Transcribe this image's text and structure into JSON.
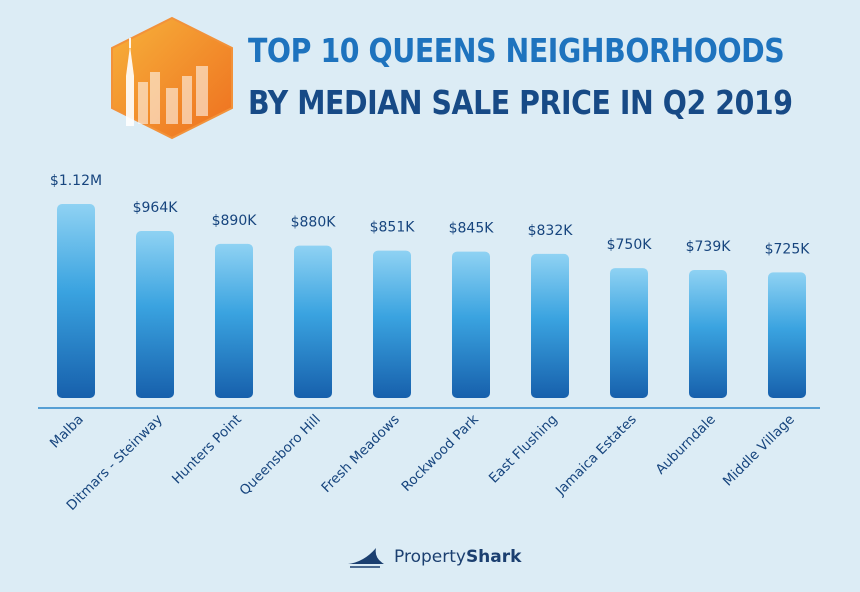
{
  "header": {
    "title": "TOP 10 QUEENS NEIGHBORHOODS",
    "subtitle": "BY MEDIAN SALE PRICE IN Q2 2019"
  },
  "brand": {
    "part1": "Property",
    "part2": "Shark"
  },
  "colors": {
    "title": "#1e73be",
    "subtitle": "#174a86",
    "bar_top": "#7fc8ee",
    "bar_bottom": "#1a63ad",
    "label": "#17457e"
  },
  "chart_data": {
    "type": "bar",
    "title": "TOP 10 QUEENS NEIGHBORHOODS BY MEDIAN SALE PRICE IN Q2 2019",
    "categories": [
      "Malba",
      "Ditmars - Steinway",
      "Hunters Point",
      "Queensboro Hill",
      "Fresh Meadows",
      "Rockwood Park",
      "East Flushing",
      "Jamaica Estates",
      "Auburndale",
      "Middle Village"
    ],
    "values": [
      1120000,
      964000,
      890000,
      880000,
      851000,
      845000,
      832000,
      750000,
      739000,
      725000
    ],
    "value_labels": [
      "$1.12M",
      "$964K",
      "$890K",
      "$880K",
      "$851K",
      "$845K",
      "$832K",
      "$750K",
      "$739K",
      "$725K"
    ],
    "xlabel": "",
    "ylabel": "",
    "grid": false
  }
}
